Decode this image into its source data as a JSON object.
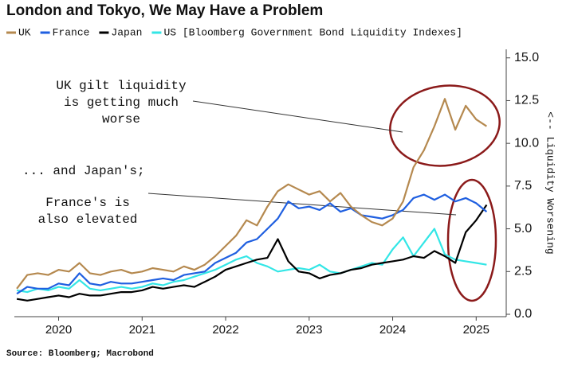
{
  "chart_data": {
    "type": "line",
    "title": "London and Tokyo, We May Have a Problem",
    "y_label": "<-- Liquidity Worsening",
    "source": "Source: Bloomberg; Macrobond",
    "annotations": [
      {
        "lines": [
          "UK gilt liquidity",
          "is getting much",
          "worse"
        ]
      },
      {
        "lines": [
          "... and Japan's;"
        ]
      },
      {
        "lines": [
          "France's is",
          "also elevated"
        ]
      }
    ],
    "x": [
      2019.5,
      2019.625,
      2019.75,
      2019.875,
      2020.0,
      2020.125,
      2020.25,
      2020.375,
      2020.5,
      2020.625,
      2020.75,
      2020.875,
      2021.0,
      2021.125,
      2021.25,
      2021.375,
      2021.5,
      2021.625,
      2021.75,
      2021.875,
      2022.0,
      2022.125,
      2022.25,
      2022.375,
      2022.5,
      2022.625,
      2022.75,
      2022.875,
      2023.0,
      2023.125,
      2023.25,
      2023.375,
      2023.5,
      2023.625,
      2023.75,
      2023.875,
      2024.0,
      2024.125,
      2024.25,
      2024.375,
      2024.5,
      2024.625,
      2024.75,
      2024.875,
      2025.0,
      2025.125
    ],
    "series": [
      {
        "name": "UK",
        "color": "#b5894f",
        "values": [
          1.5,
          2.3,
          2.4,
          2.3,
          2.6,
          2.5,
          3.0,
          2.4,
          2.3,
          2.5,
          2.6,
          2.4,
          2.5,
          2.7,
          2.6,
          2.5,
          2.8,
          2.6,
          2.9,
          3.4,
          4.0,
          4.6,
          5.5,
          5.2,
          6.3,
          7.2,
          7.6,
          7.3,
          7.0,
          7.2,
          6.6,
          7.1,
          6.3,
          5.8,
          5.4,
          5.2,
          5.6,
          6.6,
          8.6,
          9.6,
          11.0,
          12.6,
          10.8,
          12.2,
          11.4,
          11.0
        ]
      },
      {
        "name": "France",
        "color": "#1f5fe0",
        "values": [
          1.2,
          1.6,
          1.5,
          1.5,
          1.8,
          1.7,
          2.4,
          1.8,
          1.7,
          1.9,
          1.8,
          1.8,
          1.9,
          2.0,
          2.1,
          2.0,
          2.3,
          2.4,
          2.5,
          3.0,
          3.3,
          3.6,
          4.2,
          4.4,
          5.0,
          5.6,
          6.6,
          6.2,
          6.3,
          6.1,
          6.5,
          6.0,
          6.2,
          5.8,
          5.7,
          5.6,
          5.8,
          6.1,
          6.8,
          7.0,
          6.7,
          7.0,
          6.6,
          6.8,
          6.5,
          6.0
        ]
      },
      {
        "name": "Japan",
        "color": "#000000",
        "values": [
          0.9,
          0.8,
          0.9,
          1.0,
          1.1,
          1.0,
          1.2,
          1.1,
          1.1,
          1.2,
          1.3,
          1.3,
          1.4,
          1.6,
          1.5,
          1.6,
          1.7,
          1.6,
          1.9,
          2.2,
          2.6,
          2.8,
          3.0,
          3.2,
          3.3,
          4.4,
          3.1,
          2.5,
          2.4,
          2.1,
          2.3,
          2.4,
          2.6,
          2.7,
          2.9,
          3.0,
          3.1,
          3.2,
          3.4,
          3.3,
          3.7,
          3.4,
          3.0,
          4.8,
          5.5,
          6.4
        ]
      },
      {
        "name": "US [Bloomberg Government Bond Liquidity Indexes]",
        "color": "#33e6e6",
        "values": [
          1.4,
          1.3,
          1.5,
          1.4,
          1.6,
          1.5,
          2.0,
          1.5,
          1.4,
          1.5,
          1.6,
          1.5,
          1.6,
          1.8,
          1.7,
          1.9,
          2.0,
          2.2,
          2.4,
          2.6,
          2.9,
          3.2,
          3.4,
          3.0,
          2.8,
          2.5,
          2.6,
          2.7,
          2.6,
          2.9,
          2.5,
          2.4,
          2.6,
          2.8,
          3.0,
          2.9,
          3.8,
          4.5,
          3.4,
          4.2,
          5.0,
          3.5,
          3.2,
          3.1,
          3.0,
          2.9
        ]
      }
    ],
    "xlim": [
      2019.47,
      2025.36
    ],
    "xticks": [
      2020,
      2021,
      2022,
      2023,
      2024,
      2025
    ],
    "ylim": [
      0,
      15.5
    ],
    "yticks": [
      {
        "value": 0,
        "label": "0.0"
      },
      {
        "value": 2.5,
        "label": "2.5"
      },
      {
        "value": 5,
        "label": "5.0"
      },
      {
        "value": 7.5,
        "label": "7.5"
      },
      {
        "value": 10,
        "label": "10.0"
      },
      {
        "value": 12.5,
        "label": "12.5"
      },
      {
        "value": 15,
        "label": "15.0"
      }
    ],
    "y_axis_side": "right",
    "grid": false
  }
}
